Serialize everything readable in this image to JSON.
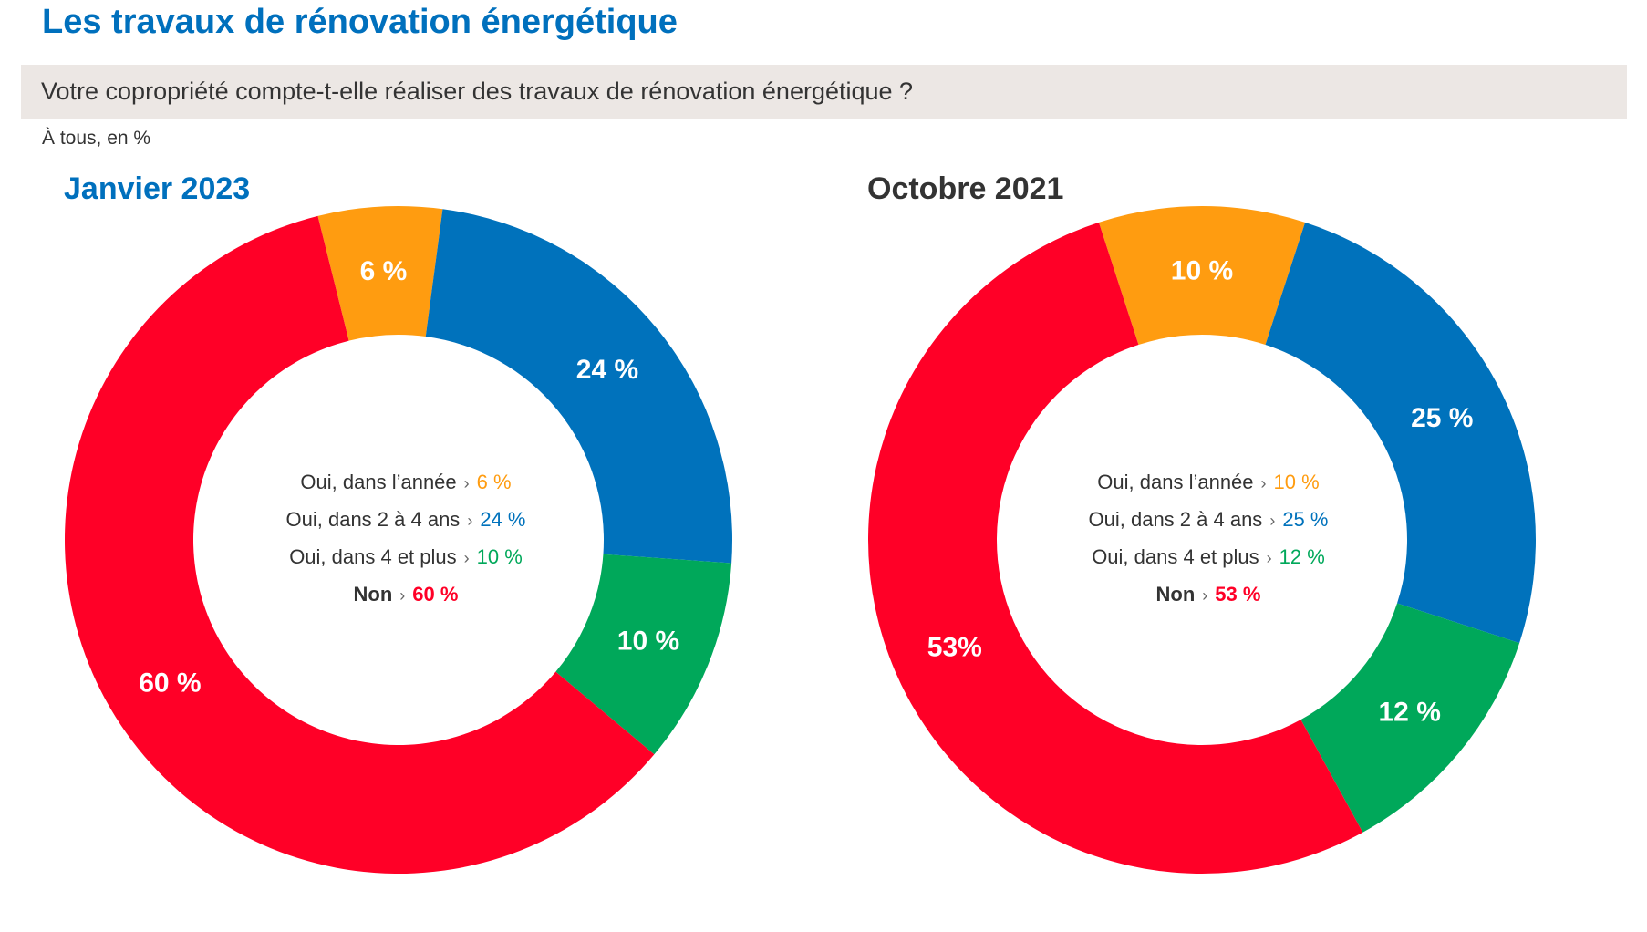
{
  "title": "Les travaux de rénovation énergétique",
  "question": "Votre copropriété compte-t-elle réaliser des travaux de rénovation énergétique ?",
  "base_note": "À tous, en %",
  "colors": {
    "title_blue": "#0070bd",
    "orange": "#ff9c10",
    "blue": "#0072bc",
    "green": "#00a85a",
    "red": "#ff0027",
    "dark_text": "#333333"
  },
  "chart_data": [
    {
      "type": "pie",
      "title": "Janvier 2023",
      "title_color": "#0070bd",
      "slices": [
        {
          "label": "Oui, dans l’année",
          "value": 6,
          "value_label": "6 %",
          "legend_value_label": "6 %",
          "color": "#ff9c10"
        },
        {
          "label": "Oui, dans 2 à 4 ans",
          "value": 24,
          "value_label": "24 %",
          "legend_value_label": "24 %",
          "color": "#0072bc"
        },
        {
          "label": "Oui, dans 4 et plus",
          "value": 10,
          "value_label": "10 %",
          "legend_value_label": "10 %",
          "color": "#00a85a"
        },
        {
          "label": "Non",
          "value": 60,
          "value_label": "60 %",
          "legend_value_label": "60 %",
          "color": "#ff0027"
        }
      ]
    },
    {
      "type": "pie",
      "title": "Octobre 2021",
      "title_color": "#333333",
      "slices": [
        {
          "label": "Oui, dans l’année",
          "value": 10,
          "value_label": "10 %",
          "legend_value_label": "10 %",
          "color": "#ff9c10"
        },
        {
          "label": "Oui, dans 2 à 4 ans",
          "value": 25,
          "value_label": "25 %",
          "legend_value_label": "25 %",
          "color": "#0072bc"
        },
        {
          "label": "Oui, dans 4 et plus",
          "value": 12,
          "value_label": "12 %",
          "legend_value_label": "12 %",
          "color": "#00a85a"
        },
        {
          "label": "Non",
          "value": 53,
          "value_label": "53%",
          "legend_value_label": "53 %",
          "color": "#ff0027"
        }
      ]
    }
  ]
}
